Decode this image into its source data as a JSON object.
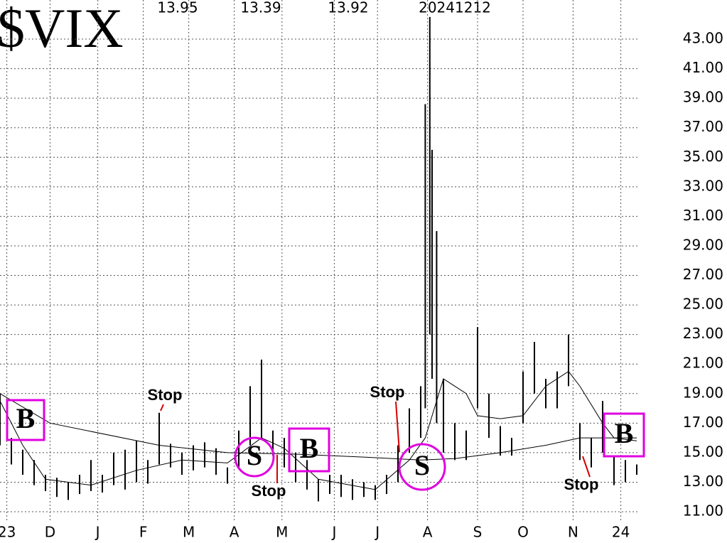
{
  "chart_data": {
    "type": "range-bar",
    "title": "$VIX",
    "header_values": [
      "13.95",
      "13.39",
      "13.92"
    ],
    "date": "20241212",
    "x": [
      0,
      5,
      10,
      15,
      20,
      25,
      30,
      35,
      40,
      45,
      50,
      55,
      60,
      65,
      70,
      75,
      80,
      85,
      90,
      95,
      100,
      105,
      110,
      115,
      120,
      125,
      130,
      135,
      140,
      145,
      150,
      155,
      160,
      165,
      170,
      175,
      180,
      185,
      187,
      189,
      190,
      192,
      195,
      200,
      205,
      210,
      215,
      220,
      225,
      230,
      235,
      240,
      245,
      250,
      255,
      260,
      265,
      270,
      275,
      280
    ],
    "high": [
      19,
      16,
      15.2,
      14.5,
      13.5,
      13.3,
      13,
      13.5,
      14.5,
      13.5,
      15,
      15.2,
      15.8,
      14.5,
      17.7,
      15.6,
      15,
      15.5,
      15.7,
      15.3,
      14,
      16.5,
      19.5,
      21.3,
      16.5,
      16,
      15,
      14.5,
      13.2,
      13.5,
      13.5,
      13.2,
      13,
      12.8,
      13.5,
      15.5,
      18,
      19.5,
      38.6,
      44.5,
      35.5,
      30,
      20,
      17,
      16.5,
      23.5,
      19,
      16.8,
      16,
      20.5,
      22.5,
      20,
      20.5,
      23,
      17,
      16,
      18.5,
      14.8,
      14.5,
      14.2
    ],
    "low": [
      15.5,
      14.2,
      13.5,
      12.8,
      12.4,
      12,
      11.8,
      12.2,
      12.4,
      12.3,
      12.8,
      12.5,
      13,
      12.9,
      14.2,
      14,
      13.5,
      13.8,
      14,
      13.5,
      12.9,
      14,
      15.5,
      16,
      14.8,
      14,
      13,
      12.5,
      11.7,
      12.2,
      12,
      11.8,
      12,
      11.8,
      12.2,
      13,
      15,
      16,
      18,
      23,
      20,
      17,
      15,
      14.5,
      14.5,
      18,
      16,
      14.8,
      14.8,
      17,
      19,
      18,
      18,
      19.5,
      14.5,
      14,
      15,
      12.8,
      13,
      13.5
    ],
    "ma_long": {
      "x": [
        0,
        22,
        70,
        100,
        130,
        160,
        185,
        200,
        220,
        240,
        255,
        280
      ],
      "values": [
        19,
        17,
        15.5,
        15,
        14.9,
        14.7,
        14.5,
        14.6,
        15,
        15.5,
        16,
        16
      ]
    },
    "ma_short": {
      "x": [
        0,
        10,
        20,
        40,
        60,
        80,
        100,
        115,
        125,
        140,
        165,
        180,
        187,
        195,
        205,
        210,
        220,
        230,
        240,
        250,
        255,
        265,
        270,
        280
      ],
      "values": [
        18.5,
        15.5,
        13.2,
        12.8,
        13.8,
        14.5,
        14.3,
        16,
        15.3,
        13.2,
        12.5,
        14.5,
        16,
        20,
        19,
        17.5,
        17.3,
        17.5,
        19.5,
        20.5,
        19.5,
        17,
        16,
        15.8
      ]
    },
    "xlim": [
      0,
      280
    ],
    "xticks": [
      {
        "value": 3,
        "label": "23"
      },
      {
        "value": 22,
        "label": "D"
      },
      {
        "value": 43,
        "label": "J"
      },
      {
        "value": 63,
        "label": "F"
      },
      {
        "value": 83,
        "label": "M"
      },
      {
        "value": 103,
        "label": "A"
      },
      {
        "value": 124,
        "label": "M"
      },
      {
        "value": 147,
        "label": "J"
      },
      {
        "value": 166,
        "label": "J"
      },
      {
        "value": 188,
        "label": "A"
      },
      {
        "value": 210,
        "label": "S"
      },
      {
        "value": 230,
        "label": "O"
      },
      {
        "value": 252,
        "label": "N"
      },
      {
        "value": 273,
        "label": "24"
      }
    ],
    "ylim": [
      10.5,
      44.5
    ],
    "yticks": [
      {
        "value": 11,
        "label": "11.00"
      },
      {
        "value": 13,
        "label": "13.00"
      },
      {
        "value": 15,
        "label": "15.00"
      },
      {
        "value": 17,
        "label": "17.00"
      },
      {
        "value": 19,
        "label": "19.00"
      },
      {
        "value": 21,
        "label": "21.00"
      },
      {
        "value": 23,
        "label": "23.00"
      },
      {
        "value": 25,
        "label": "25.00"
      },
      {
        "value": 27,
        "label": "27.00"
      },
      {
        "value": 29,
        "label": "29.00"
      },
      {
        "value": 31,
        "label": "31.00"
      },
      {
        "value": 33,
        "label": "33.00"
      },
      {
        "value": 35,
        "label": "35.00"
      },
      {
        "value": 37,
        "label": "37.00"
      },
      {
        "value": 39,
        "label": "39.00"
      },
      {
        "value": 41,
        "label": "41.00"
      },
      {
        "value": 43,
        "label": "43.00"
      }
    ],
    "grid": true,
    "color": "#000000",
    "annotation_color": "#d40000",
    "signal_color": "#e000e0",
    "annotations": [
      "Stop",
      "Stop",
      "Stop",
      "Stop"
    ],
    "signals": [
      "B",
      "S",
      "B",
      "S",
      "B"
    ]
  }
}
